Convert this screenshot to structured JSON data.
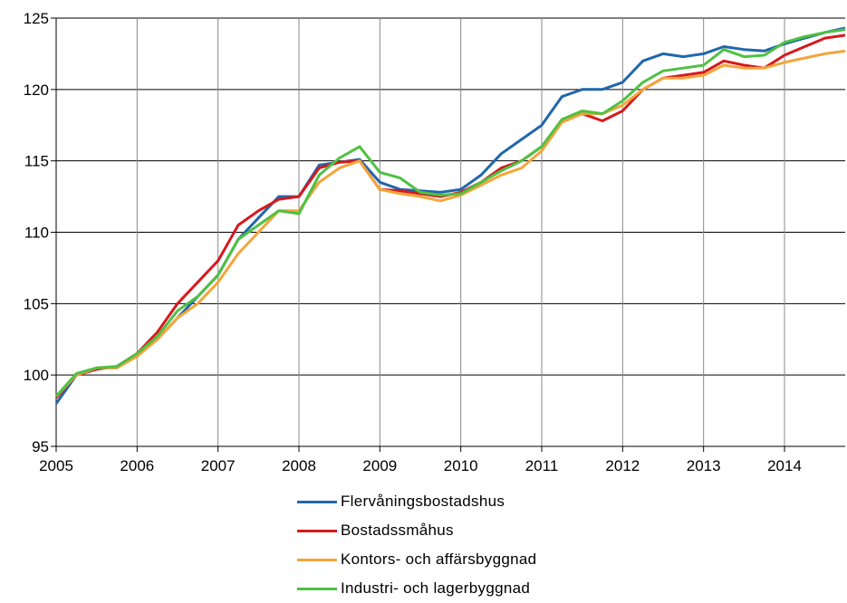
{
  "chart_data": {
    "type": "line",
    "title": "",
    "xlabel": "",
    "ylabel": "",
    "xlim": [
      2005.0,
      2014.75
    ],
    "ylim": [
      95,
      125
    ],
    "y_ticks": [
      95,
      100,
      105,
      110,
      115,
      120,
      125
    ],
    "x_tick_labels": [
      "2005",
      "2006",
      "2007",
      "2008",
      "2009",
      "2010",
      "2011",
      "2012",
      "2013",
      "2014"
    ],
    "grid": true,
    "legend_position": "bottom",
    "series": [
      {
        "name": "Flervåningsbostadshus",
        "color": "#2166ac",
        "x": [
          2005.0,
          2005.25,
          2005.5,
          2005.75,
          2006.0,
          2006.25,
          2006.5,
          2006.75,
          2007.0,
          2007.25,
          2007.5,
          2007.75,
          2008.0,
          2008.25,
          2008.5,
          2008.75,
          2009.0,
          2009.25,
          2009.5,
          2009.75,
          2010.0,
          2010.25,
          2010.5,
          2010.75,
          2011.0,
          2011.25,
          2011.5,
          2011.75,
          2012.0,
          2012.25,
          2012.5,
          2012.75,
          2013.0,
          2013.25,
          2013.5,
          2013.75,
          2014.0,
          2014.25,
          2014.5,
          2014.75
        ],
        "values": [
          98.0,
          100.0,
          100.5,
          100.5,
          101.5,
          102.5,
          104.0,
          105.5,
          107.0,
          109.5,
          111.0,
          112.5,
          112.5,
          114.7,
          114.9,
          115.1,
          113.5,
          113.0,
          112.9,
          112.8,
          113.0,
          114.0,
          115.5,
          116.5,
          117.5,
          119.5,
          120.0,
          120.0,
          120.5,
          122.0,
          122.5,
          122.3,
          122.5,
          123.0,
          122.8,
          122.7,
          123.2,
          123.6,
          124.0,
          124.3
        ]
      },
      {
        "name": "Bostadssmåhus",
        "color": "#d7191c",
        "x": [
          2005.0,
          2005.25,
          2005.5,
          2005.75,
          2006.0,
          2006.25,
          2006.5,
          2006.75,
          2007.0,
          2007.25,
          2007.5,
          2007.75,
          2008.0,
          2008.25,
          2008.5,
          2008.75,
          2009.0,
          2009.25,
          2009.5,
          2009.75,
          2010.0,
          2010.25,
          2010.5,
          2010.75,
          2011.0,
          2011.25,
          2011.5,
          2011.75,
          2012.0,
          2012.25,
          2012.5,
          2012.75,
          2013.0,
          2013.25,
          2013.5,
          2013.75,
          2014.0,
          2014.25,
          2014.5,
          2014.75
        ],
        "values": [
          98.4,
          100.0,
          100.4,
          100.6,
          101.5,
          103.0,
          105.0,
          106.5,
          108.0,
          110.5,
          111.5,
          112.3,
          112.5,
          114.5,
          114.9,
          115.0,
          113.0,
          112.9,
          112.7,
          112.5,
          112.8,
          113.5,
          114.5,
          115.0,
          116.0,
          117.8,
          118.3,
          117.8,
          118.5,
          120.0,
          120.8,
          121.0,
          121.2,
          122.0,
          121.7,
          121.5,
          122.4,
          123.0,
          123.6,
          123.8
        ]
      },
      {
        "name": "Kontors- och affärsbyggnad",
        "color": "#f4a53a",
        "x": [
          2005.0,
          2005.25,
          2005.5,
          2005.75,
          2006.0,
          2006.25,
          2006.5,
          2006.75,
          2007.0,
          2007.25,
          2007.5,
          2007.75,
          2008.0,
          2008.25,
          2008.5,
          2008.75,
          2009.0,
          2009.25,
          2009.5,
          2009.75,
          2010.0,
          2010.25,
          2010.5,
          2010.75,
          2011.0,
          2011.25,
          2011.5,
          2011.75,
          2012.0,
          2012.25,
          2012.5,
          2012.75,
          2013.0,
          2013.25,
          2013.5,
          2013.75,
          2014.0,
          2014.25,
          2014.5,
          2014.75
        ],
        "values": [
          98.5,
          100.0,
          100.5,
          100.5,
          101.3,
          102.5,
          104.0,
          105.0,
          106.5,
          108.5,
          110.0,
          111.5,
          111.5,
          113.5,
          114.5,
          115.0,
          113.0,
          112.7,
          112.5,
          112.2,
          112.6,
          113.3,
          114.0,
          114.5,
          115.7,
          117.7,
          118.3,
          118.3,
          118.9,
          120.0,
          120.8,
          120.8,
          121.0,
          121.7,
          121.5,
          121.5,
          121.9,
          122.2,
          122.5,
          122.7
        ]
      },
      {
        "name": "Industri- och lagerbyggnad",
        "color": "#4ec143",
        "x": [
          2005.0,
          2005.25,
          2005.5,
          2005.75,
          2006.0,
          2006.25,
          2006.5,
          2006.75,
          2007.0,
          2007.25,
          2007.5,
          2007.75,
          2008.0,
          2008.25,
          2008.5,
          2008.75,
          2009.0,
          2009.25,
          2009.5,
          2009.75,
          2010.0,
          2010.25,
          2010.5,
          2010.75,
          2011.0,
          2011.25,
          2011.5,
          2011.75,
          2012.0,
          2012.25,
          2012.5,
          2012.75,
          2013.0,
          2013.25,
          2013.5,
          2013.75,
          2014.0,
          2014.25,
          2014.5,
          2014.75
        ],
        "values": [
          98.5,
          100.1,
          100.5,
          100.6,
          101.5,
          102.7,
          104.5,
          105.5,
          107.0,
          109.5,
          110.5,
          111.5,
          111.3,
          114.0,
          115.2,
          116.0,
          114.2,
          113.8,
          112.8,
          112.6,
          112.7,
          113.5,
          114.3,
          115.0,
          116.0,
          117.9,
          118.5,
          118.3,
          119.2,
          120.5,
          121.3,
          121.5,
          121.7,
          122.8,
          122.3,
          122.4,
          123.3,
          123.7,
          124.0,
          124.2
        ]
      }
    ]
  }
}
